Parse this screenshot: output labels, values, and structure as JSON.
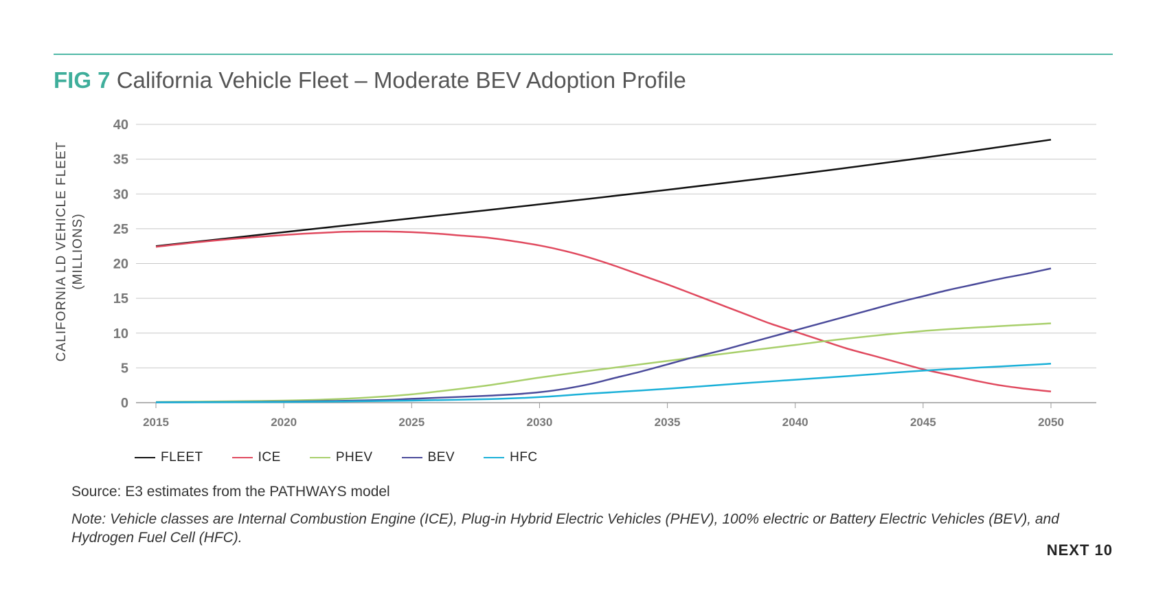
{
  "header": {
    "fig_label": "FIG 7",
    "title": "California Vehicle Fleet – Moderate BEV Adoption Profile"
  },
  "chart_data": {
    "type": "line",
    "ylabel_line1": "CALIFORNIA LD VEHICLE FLEET",
    "ylabel_line2": "(MILLIONS)",
    "xlabel": "",
    "xlim": [
      2015,
      2050
    ],
    "ylim": [
      0,
      40
    ],
    "xticks": [
      2015,
      2020,
      2025,
      2030,
      2035,
      2040,
      2045,
      2050
    ],
    "yticks": [
      0,
      5,
      10,
      15,
      20,
      25,
      30,
      35,
      40
    ],
    "grid": "horizontal",
    "legend_position": "bottom-left",
    "series": [
      {
        "name": "FLEET",
        "color": "#111111",
        "x": [
          2015,
          2020,
          2025,
          2030,
          2035,
          2040,
          2045,
          2050
        ],
        "y": [
          22.5,
          24.5,
          26.5,
          28.5,
          30.6,
          32.8,
          35.2,
          37.8
        ]
      },
      {
        "name": "ICE",
        "color": "#e0495e",
        "x": [
          2015,
          2017,
          2020,
          2022,
          2023,
          2024,
          2025,
          2026,
          2027,
          2028,
          2029,
          2030,
          2031,
          2032,
          2033,
          2034,
          2035,
          2036,
          2037,
          2038,
          2039,
          2040,
          2041,
          2042,
          2043,
          2044,
          2045,
          2046,
          2047,
          2048,
          2049,
          2050
        ],
        "y": [
          22.4,
          23.2,
          24.1,
          24.5,
          24.6,
          24.6,
          24.5,
          24.3,
          24.0,
          23.7,
          23.2,
          22.6,
          21.8,
          20.8,
          19.6,
          18.3,
          17.0,
          15.6,
          14.2,
          12.8,
          11.4,
          10.2,
          9.0,
          7.8,
          6.8,
          5.8,
          4.8,
          4.0,
          3.2,
          2.5,
          2.0,
          1.6
        ]
      },
      {
        "name": "PHEV",
        "color": "#a8cf6b",
        "x": [
          2015,
          2018,
          2020,
          2022,
          2024,
          2025,
          2026,
          2028,
          2030,
          2032,
          2035,
          2038,
          2040,
          2042,
          2045,
          2048,
          2050
        ],
        "y": [
          0.1,
          0.2,
          0.3,
          0.5,
          0.9,
          1.2,
          1.6,
          2.5,
          3.6,
          4.6,
          6.0,
          7.4,
          8.3,
          9.2,
          10.3,
          11.0,
          11.4
        ]
      },
      {
        "name": "BEV",
        "color": "#4a4a9a",
        "x": [
          2015,
          2018,
          2020,
          2022,
          2024,
          2025,
          2026,
          2028,
          2029,
          2030,
          2031,
          2032,
          2033,
          2034,
          2035,
          2036,
          2037,
          2038,
          2039,
          2040,
          2041,
          2042,
          2043,
          2044,
          2045,
          2046,
          2047,
          2048,
          2049,
          2050
        ],
        "y": [
          0.05,
          0.1,
          0.15,
          0.25,
          0.4,
          0.55,
          0.7,
          1.0,
          1.2,
          1.5,
          2.0,
          2.7,
          3.6,
          4.5,
          5.5,
          6.5,
          7.4,
          8.4,
          9.4,
          10.4,
          11.4,
          12.4,
          13.4,
          14.4,
          15.3,
          16.2,
          17.0,
          17.8,
          18.5,
          19.3
        ]
      },
      {
        "name": "HFC",
        "color": "#1ab0d8",
        "x": [
          2015,
          2020,
          2025,
          2028,
          2030,
          2032,
          2035,
          2038,
          2040,
          2042,
          2045,
          2048,
          2050
        ],
        "y": [
          0.05,
          0.1,
          0.3,
          0.5,
          0.8,
          1.3,
          2.0,
          2.8,
          3.3,
          3.8,
          4.6,
          5.2,
          5.6
        ]
      }
    ]
  },
  "source": "Source: E3 estimates from the PATHWAYS model",
  "note": "Note: Vehicle classes are Internal Combustion Engine (ICE), Plug-in Hybrid Electric Vehicles (PHEV), 100% electric or Battery Electric Vehicles (BEV), and Hydrogen Fuel Cell (HFC).",
  "brand": "NEXT 10"
}
